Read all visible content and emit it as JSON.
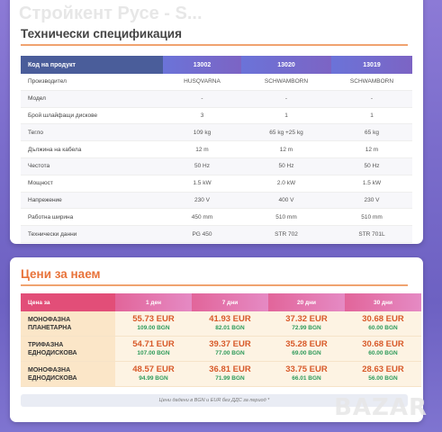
{
  "watermark": "Стройкент Русе - S...",
  "spec": {
    "title": "Технически спецификация",
    "headers": [
      "Код на продукт",
      "13002",
      "13020",
      "13019"
    ],
    "rows": [
      [
        "Производител",
        "HUSQVARNA",
        "SCHWAMBORN",
        "SCHWAMBORN"
      ],
      [
        "Модел",
        "-",
        "-",
        "-"
      ],
      [
        "Брой шлайфащи дискове",
        "3",
        "1",
        "1"
      ],
      [
        "Тегло",
        "109 kg",
        "65 kg +25 kg",
        "65 kg"
      ],
      [
        "Дължина на кабела",
        "12 m",
        "12 m",
        "12 m"
      ],
      [
        "Честота",
        "50 Hz",
        "50 Hz",
        "50 Hz"
      ],
      [
        "Мощност",
        "1.5 kW",
        "2.0 kW",
        "1.5 kW"
      ],
      [
        "Напрежение",
        "230 V",
        "400 V",
        "230 V"
      ],
      [
        "Работна ширина",
        "450 mm",
        "510 mm",
        "510 mm"
      ],
      [
        "Технически данни",
        "PG 450",
        "STR 702",
        "STR 701L"
      ]
    ]
  },
  "rent": {
    "title": "Цени за наем",
    "headers": [
      "Цена за",
      "1 ден",
      "7 дни",
      "20 дни",
      "30 дни"
    ],
    "rows": [
      {
        "name": "МОНОФАЗНА\nПЛАНЕТАРНА",
        "prices": [
          [
            "55.73 EUR",
            "109.00 BGN"
          ],
          [
            "41.93 EUR",
            "82.01 BGN"
          ],
          [
            "37.32 EUR",
            "72.99 BGN"
          ],
          [
            "30.68 EUR",
            "60.00 BGN"
          ]
        ]
      },
      {
        "name": "ТРИФАЗНА\nЕДНОДИСКОВА",
        "prices": [
          [
            "54.71 EUR",
            "107.00 BGN"
          ],
          [
            "39.37 EUR",
            "77.00 BGN"
          ],
          [
            "35.28 EUR",
            "69.00 BGN"
          ],
          [
            "30.68 EUR",
            "60.00 BGN"
          ]
        ]
      },
      {
        "name": "МОНОФАЗНА\nЕДНОДИСКОВА",
        "prices": [
          [
            "48.57 EUR",
            "94.99 BGN"
          ],
          [
            "36.81 EUR",
            "71.99 BGN"
          ],
          [
            "33.75 EUR",
            "66.01 BGN"
          ],
          [
            "28.63 EUR",
            "56.00 BGN"
          ]
        ]
      }
    ],
    "note": "Цени дадени в BGN и EUR без ДДС за период *"
  },
  "logo": "BAZAR"
}
